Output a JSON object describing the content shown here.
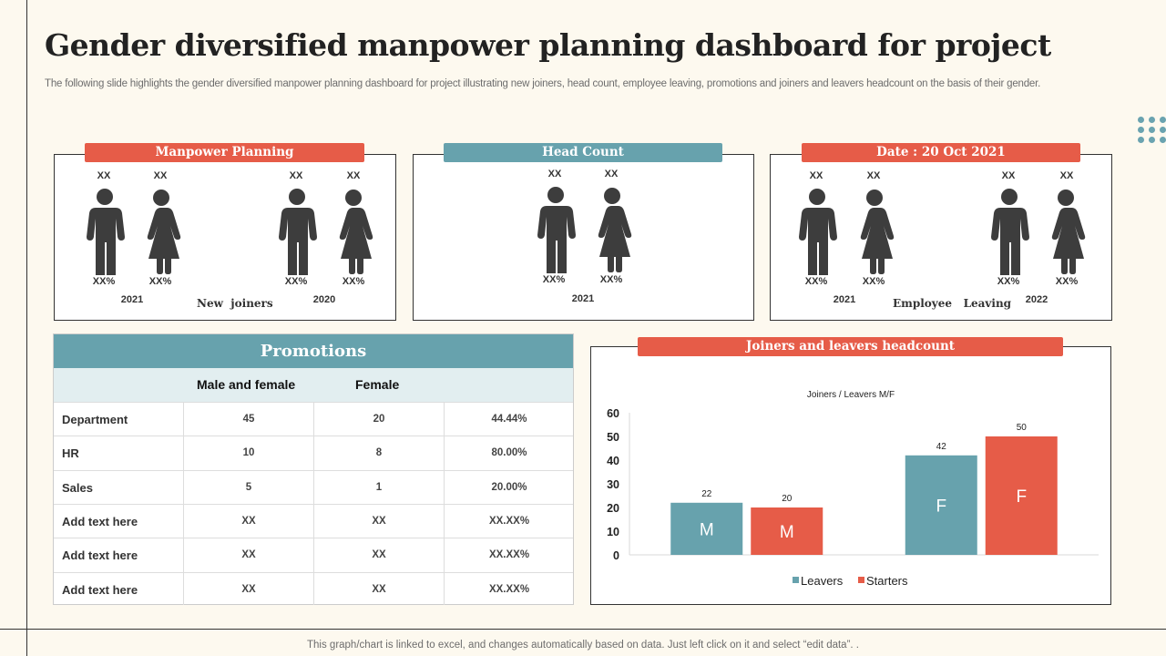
{
  "header": {
    "title": "Gender diversified manpower planning dashboard for project",
    "subtitle": "The following slide highlights the gender diversified manpower planning dashboard for project illustrating new joiners, head count, employee leaving, promotions and joiners and leavers headcount on the basis of their gender."
  },
  "colors": {
    "red": "#e65c48",
    "teal": "#67a2ad",
    "figure": "#3d3d3d"
  },
  "manpower": {
    "tab": "Manpower Planning",
    "center_label": "New  joiners",
    "groups": [
      {
        "year": "2021",
        "male_count": "XX",
        "female_count": "XX",
        "male_pct": "XX%",
        "female_pct": "XX%"
      },
      {
        "year": "2020",
        "male_count": "XX",
        "female_count": "XX",
        "male_pct": "XX%",
        "female_pct": "XX%"
      }
    ]
  },
  "headcount": {
    "tab": "Head Count",
    "group": {
      "year": "2021",
      "male_count": "XX",
      "female_count": "XX",
      "male_pct": "XX%",
      "female_pct": "XX%"
    }
  },
  "leaving": {
    "tab": "Date : 20 Oct 2021",
    "center_label": "Employee   Leaving",
    "groups": [
      {
        "year": "2021",
        "male_count": "XX",
        "female_count": "XX",
        "male_pct": "XX%",
        "female_pct": "XX%"
      },
      {
        "year": "2022",
        "male_count": "XX",
        "female_count": "XX",
        "male_pct": "XX%",
        "female_pct": "XX%"
      }
    ]
  },
  "promotions": {
    "title": "Promotions",
    "columns": [
      "Male and female",
      "Female"
    ],
    "rows": [
      [
        "Department",
        "45",
        "20",
        "44.44%"
      ],
      [
        "HR",
        "10",
        "8",
        "80.00%"
      ],
      [
        "Sales",
        "5",
        "1",
        "20.00%"
      ],
      [
        "Add text here",
        "XX",
        "XX",
        "XX.XX%"
      ],
      [
        "Add text here",
        "XX",
        "XX",
        "XX.XX%"
      ],
      [
        "Add text here",
        "XX",
        "XX",
        "XX.XX%"
      ]
    ]
  },
  "joiners_chart": {
    "tab": "Joiners and leavers headcount"
  },
  "chart_data": {
    "type": "bar",
    "title": "Joiners / Leavers M/F",
    "categories": [
      "M",
      "F"
    ],
    "series": [
      {
        "name": "Leavers",
        "color": "#67a2ad",
        "values": [
          22,
          42
        ]
      },
      {
        "name": "Starters",
        "color": "#e65c48",
        "values": [
          20,
          50
        ]
      }
    ],
    "ylim": [
      0,
      60
    ],
    "yticks": [
      0,
      10,
      20,
      30,
      40,
      50,
      60
    ],
    "legend": "bottom",
    "grid": false
  },
  "footer": "This graph/chart is linked to excel,  and changes automatically based on data. Just left click on it and select “edit data”. ."
}
